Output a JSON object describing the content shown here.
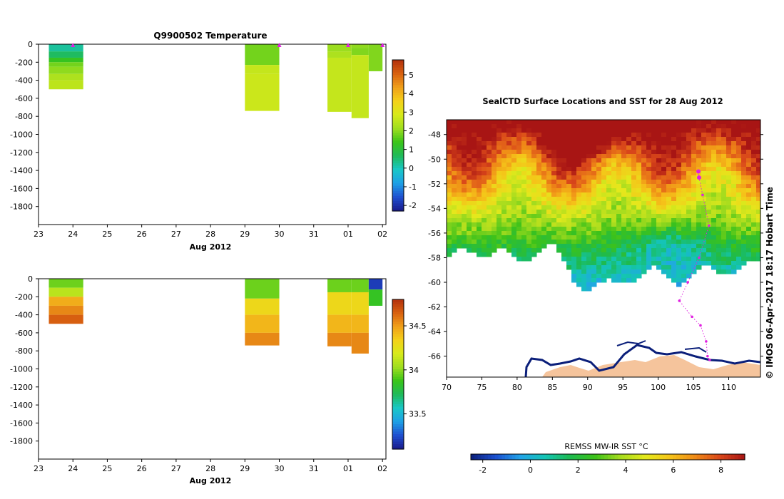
{
  "colors": {
    "temp_scale": [
      "#1a1a8c",
      "#1f4fd0",
      "#1ea0e6",
      "#19c7c7",
      "#1fba5a",
      "#39c419",
      "#9fde1f",
      "#d7ea1a",
      "#f4d11a",
      "#f0a01a",
      "#d86010",
      "#b2300d"
    ],
    "sal_scale": [
      "#1a1a8c",
      "#1f4fd0",
      "#1ea0e6",
      "#19c7c7",
      "#1fba5a",
      "#39c419",
      "#9fde1f",
      "#d7ea1a",
      "#f4d11a",
      "#f0a01a",
      "#d86010",
      "#b2300d"
    ],
    "sst_scale": [
      "#0b1f7a",
      "#1b4fcf",
      "#22a4e8",
      "#14c5b4",
      "#1dba4e",
      "#3dc21a",
      "#a6dc1e",
      "#e4e91c",
      "#f5c419",
      "#ef8a17",
      "#d9471a",
      "#a81514"
    ],
    "track_color": "#e020e0",
    "land_color": "#f5c49c",
    "coast_color": "#0b1f7a"
  },
  "chart_data": [
    {
      "id": "temperature",
      "type": "heatmap",
      "title": "Q9900502  Temperature",
      "xlabel": "Aug 2012",
      "x_ticks": [
        "23",
        "24",
        "25",
        "26",
        "27",
        "28",
        "29",
        "30",
        "31",
        "01",
        "02"
      ],
      "y_ticks": [
        "0",
        "-200",
        "-400",
        "-600",
        "-800",
        "-1000",
        "-1200",
        "-1400",
        "-1600",
        "-1800"
      ],
      "ylim": [
        -2000,
        0
      ],
      "colorbar_ticks": [
        "5",
        "4",
        "3",
        "2",
        "1",
        "0",
        "-1",
        "-2"
      ],
      "colorbar_range": [
        -2.3,
        5.8
      ],
      "profile_markers_day": [
        24.0,
        30.0,
        32.0,
        33.0
      ],
      "profiles": [
        {
          "x0": 23.3,
          "x1": 24.3,
          "layers": [
            [
              0,
              -80,
              0.2
            ],
            [
              -80,
              -150,
              0.6
            ],
            [
              -150,
              -200,
              1.3
            ],
            [
              -200,
              -250,
              1.8
            ],
            [
              -250,
              -330,
              2.0
            ],
            [
              -330,
              -400,
              2.3
            ],
            [
              -400,
              -500,
              2.5
            ]
          ]
        },
        {
          "x0": 29.0,
          "x1": 30.0,
          "layers": [
            [
              0,
              -230,
              1.8
            ],
            [
              -230,
              -330,
              2.6
            ],
            [
              -330,
              -740,
              2.7
            ]
          ]
        },
        {
          "x0": 31.4,
          "x1": 32.1,
          "layers": [
            [
              0,
              -80,
              2.1
            ],
            [
              -80,
              -150,
              2.3
            ],
            [
              -150,
              -750,
              2.6
            ]
          ]
        },
        {
          "x0": 32.1,
          "x1": 32.6,
          "layers": [
            [
              0,
              -40,
              2.0
            ],
            [
              -40,
              -120,
              1.9
            ],
            [
              -120,
              -820,
              2.6
            ]
          ]
        },
        {
          "x0": 32.6,
          "x1": 33.0,
          "layers": [
            [
              0,
              -300,
              1.9
            ]
          ]
        }
      ]
    },
    {
      "id": "salinity",
      "type": "heatmap",
      "title": "",
      "xlabel": "Aug 2012",
      "x_ticks": [
        "23",
        "24",
        "25",
        "26",
        "27",
        "28",
        "29",
        "30",
        "31",
        "01",
        "02"
      ],
      "y_ticks": [
        "0",
        "-200",
        "-400",
        "-600",
        "-800",
        "-1000",
        "-1200",
        "-1400",
        "-1600",
        "-1800"
      ],
      "ylim": [
        -2000,
        0
      ],
      "colorbar_ticks": [
        "34.5",
        "34",
        "33.5"
      ],
      "colorbar_range": [
        33.1,
        34.8
      ],
      "profiles": [
        {
          "x0": 23.3,
          "x1": 24.3,
          "layers": [
            [
              0,
              -100,
              33.95
            ],
            [
              -100,
              -200,
              34.1
            ],
            [
              -200,
              -300,
              34.45
            ],
            [
              -300,
              -400,
              34.55
            ],
            [
              -400,
              -500,
              34.65
            ]
          ]
        },
        {
          "x0": 29.0,
          "x1": 30.0,
          "layers": [
            [
              0,
              -220,
              33.95
            ],
            [
              -220,
              -400,
              34.3
            ],
            [
              -400,
              -600,
              34.42
            ],
            [
              -600,
              -740,
              34.55
            ]
          ]
        },
        {
          "x0": 31.4,
          "x1": 32.1,
          "layers": [
            [
              0,
              -150,
              33.95
            ],
            [
              -150,
              -400,
              34.3
            ],
            [
              -400,
              -600,
              34.42
            ],
            [
              -600,
              -750,
              34.55
            ]
          ]
        },
        {
          "x0": 32.1,
          "x1": 32.6,
          "layers": [
            [
              0,
              -150,
              33.95
            ],
            [
              -150,
              -400,
              34.3
            ],
            [
              -400,
              -600,
              34.42
            ],
            [
              -600,
              -830,
              34.55
            ]
          ]
        },
        {
          "x0": 32.6,
          "x1": 33.0,
          "layers": [
            [
              0,
              -120,
              33.2
            ],
            [
              -120,
              -300,
              33.85
            ]
          ]
        }
      ]
    },
    {
      "id": "sst_map",
      "type": "heatmap",
      "title": "SealCTD Surface Locations and SST for 28 Aug 2012",
      "x_ticks": [
        "70",
        "75",
        "80",
        "85",
        "90",
        "95",
        "100",
        "105",
        "110"
      ],
      "y_ticks": [
        "-48",
        "-50",
        "-52",
        "-54",
        "-56",
        "-58",
        "-60",
        "-62",
        "-64",
        "-66"
      ],
      "xlim": [
        70,
        114.5
      ],
      "ylim": [
        -67.7,
        -46.8
      ],
      "colorbar_label": "REMSS MW-IR SST °C",
      "colorbar_ticks": [
        "-2",
        "0",
        "2",
        "4",
        "6",
        "8"
      ],
      "colorbar_range": [
        -2.5,
        9
      ],
      "side_text": "© IMOS 06-Apr-2017 18:17 Hobart Time",
      "track_points": [
        [
          105.7,
          -51.0
        ],
        [
          105.8,
          -51.5
        ],
        [
          106.3,
          -52.9
        ],
        [
          107.2,
          -55.4
        ],
        [
          105.8,
          -58.0
        ],
        [
          104.2,
          -60.0
        ],
        [
          103.0,
          -61.5
        ],
        [
          104.8,
          -62.8
        ],
        [
          106.0,
          -63.5
        ],
        [
          106.8,
          -64.8
        ],
        [
          107.0,
          -66.0
        ],
        [
          107.3,
          -66.3
        ]
      ]
    }
  ]
}
